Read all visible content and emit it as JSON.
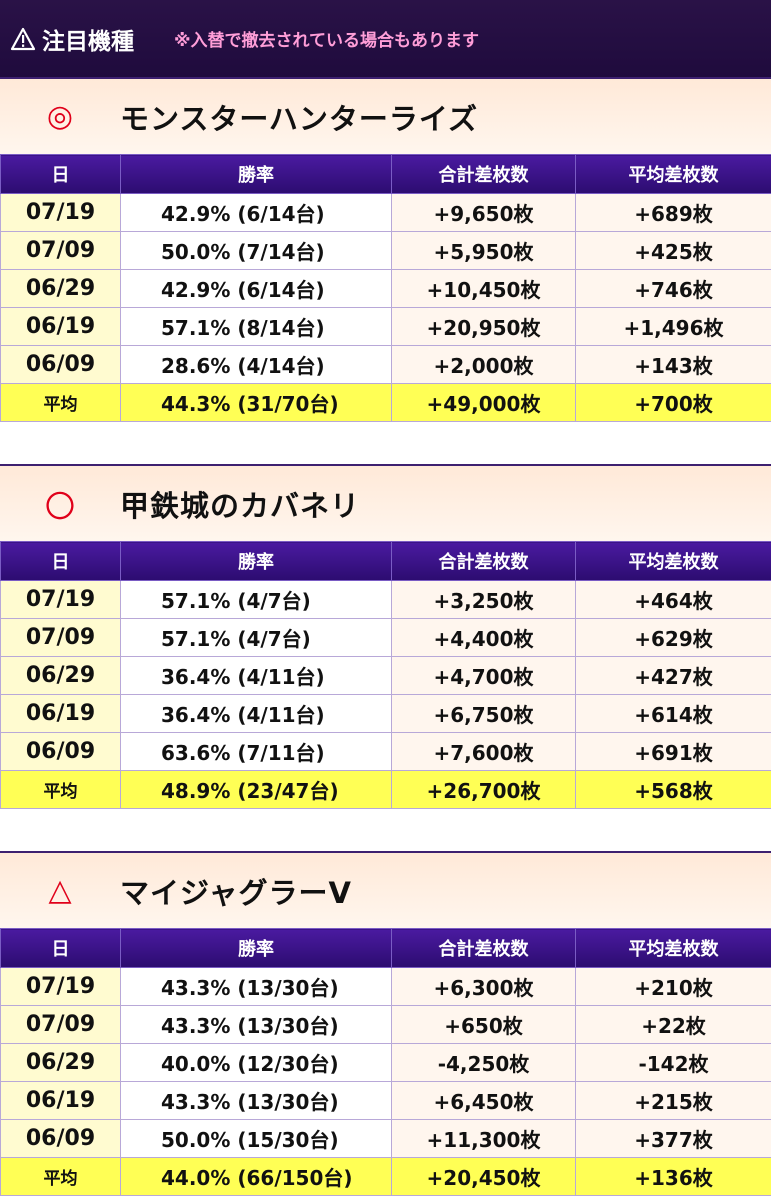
{
  "header": {
    "title": "注目機種",
    "note": "※入替で撤去されている場合もあります",
    "icon": "warning-icon"
  },
  "columns": [
    "日",
    "勝率",
    "合計差枚数",
    "平均差枚数"
  ],
  "sections": [
    {
      "mark": "◎",
      "title": "モンスターハンターライズ",
      "rows": [
        {
          "date": "07/19",
          "rate": "42.9% (6/14台)",
          "total": "+9,650枚",
          "avg": "+689枚"
        },
        {
          "date": "07/09",
          "rate": "50.0% (7/14台)",
          "total": "+5,950枚",
          "avg": "+425枚"
        },
        {
          "date": "06/29",
          "rate": "42.9% (6/14台)",
          "total": "+10,450枚",
          "avg": "+746枚"
        },
        {
          "date": "06/19",
          "rate": "57.1% (8/14台)",
          "total": "+20,950枚",
          "avg": "+1,496枚"
        },
        {
          "date": "06/09",
          "rate": "28.6% (4/14台)",
          "total": "+2,000枚",
          "avg": "+143枚"
        }
      ],
      "average": {
        "label": "平均",
        "rate": "44.3% (31/70台)",
        "total": "+49,000枚",
        "avg": "+700枚"
      }
    },
    {
      "mark": "〇",
      "title": "甲鉄城のカバネリ",
      "rows": [
        {
          "date": "07/19",
          "rate": "57.1% (4/7台)",
          "total": "+3,250枚",
          "avg": "+464枚"
        },
        {
          "date": "07/09",
          "rate": "57.1% (4/7台)",
          "total": "+4,400枚",
          "avg": "+629枚"
        },
        {
          "date": "06/29",
          "rate": "36.4% (4/11台)",
          "total": "+4,700枚",
          "avg": "+427枚"
        },
        {
          "date": "06/19",
          "rate": "36.4% (4/11台)",
          "total": "+6,750枚",
          "avg": "+614枚"
        },
        {
          "date": "06/09",
          "rate": "63.6% (7/11台)",
          "total": "+7,600枚",
          "avg": "+691枚"
        }
      ],
      "average": {
        "label": "平均",
        "rate": "48.9% (23/47台)",
        "total": "+26,700枚",
        "avg": "+568枚"
      }
    },
    {
      "mark": "△",
      "title": "マイジャグラーV",
      "rows": [
        {
          "date": "07/19",
          "rate": "43.3% (13/30台)",
          "total": "+6,300枚",
          "avg": "+210枚"
        },
        {
          "date": "07/09",
          "rate": "43.3% (13/30台)",
          "total": "+650枚",
          "avg": "+22枚"
        },
        {
          "date": "06/29",
          "rate": "40.0% (12/30台)",
          "total": "-4,250枚",
          "avg": "-142枚"
        },
        {
          "date": "06/19",
          "rate": "43.3% (13/30台)",
          "total": "+6,450枚",
          "avg": "+215枚"
        },
        {
          "date": "06/09",
          "rate": "50.0% (15/30台)",
          "total": "+11,300枚",
          "avg": "+377枚"
        }
      ],
      "average": {
        "label": "平均",
        "rate": "44.0% (66/150台)",
        "total": "+20,450枚",
        "avg": "+136枚"
      }
    }
  ]
}
